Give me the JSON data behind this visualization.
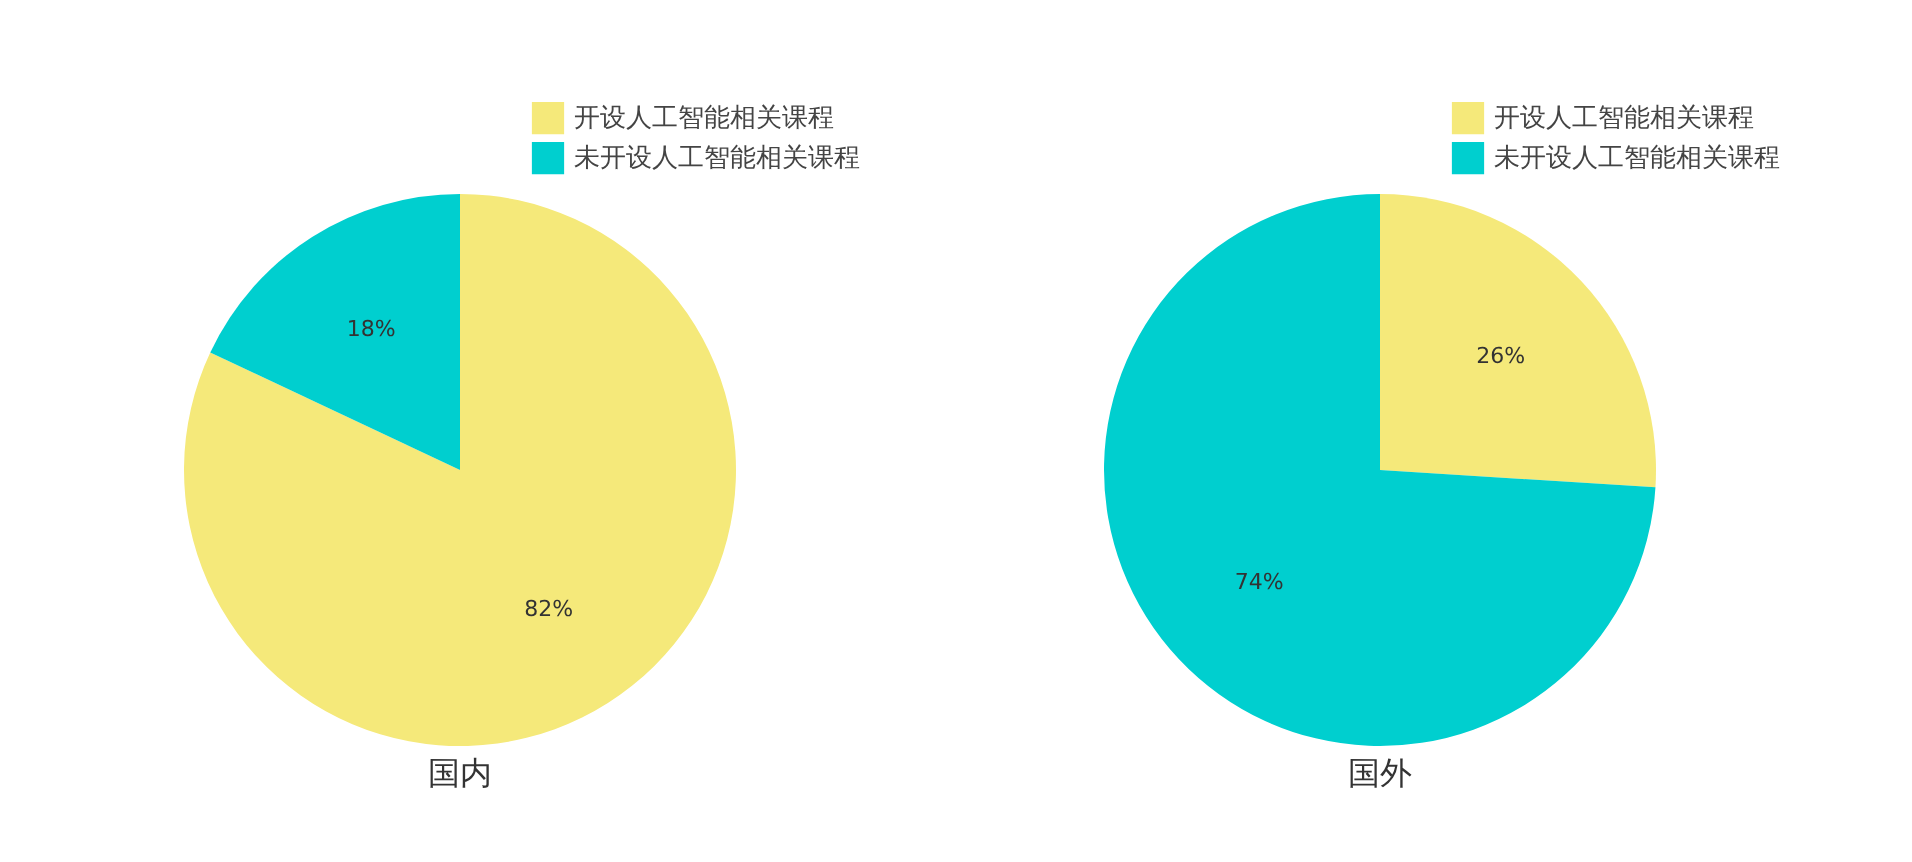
{
  "chart_data": [
    {
      "type": "pie",
      "title": "国内",
      "categories": [
        "开设人工智能相关课程",
        "未开设人工智能相关课程"
      ],
      "values": [
        82,
        18
      ],
      "colors": [
        "#f5e97a",
        "#00cfcf"
      ],
      "value_labels": [
        "82%",
        "18%"
      ],
      "legend": "top right"
    },
    {
      "type": "pie",
      "title": "国外",
      "categories": [
        "开设人工智能相关课程",
        "未开设人工智能相关课程"
      ],
      "values": [
        26,
        74
      ],
      "colors": [
        "#f5e97a",
        "#00cfcf"
      ],
      "value_labels": [
        "26%",
        "74%"
      ],
      "legend": "top right"
    }
  ]
}
